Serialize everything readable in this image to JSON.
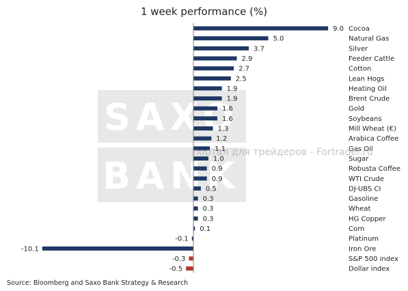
{
  "chart_data": {
    "type": "bar",
    "orientation": "horizontal",
    "title": "1 week performance (%)",
    "source": "Source: Bloomberg and Saxo Bank Strategy & Research",
    "categories": [
      "Cocoa",
      "Natural Gas",
      "Silver",
      "Feeder Cattle",
      "Cotton",
      "Lean Hogs",
      "Heating Oil",
      "Brent Crude",
      "Gold",
      "Soybeans",
      "Mill Wheat (€)",
      "Arabica Coffee",
      "Gas Oil",
      "Sugar",
      "Robusta Coffee",
      "WTI Crude",
      "DJ-UBS CI",
      "Gasoline",
      "Wheat",
      "HG Copper",
      "Corn",
      "Platinum",
      "Iron Ore",
      "S&P 500 index",
      "Dollar index"
    ],
    "values": [
      9.0,
      5.0,
      3.7,
      2.9,
      2.7,
      2.5,
      1.9,
      1.9,
      1.6,
      1.6,
      1.3,
      1.2,
      1.1,
      1.0,
      0.9,
      0.9,
      0.5,
      0.3,
      0.3,
      0.3,
      0.1,
      -0.1,
      -10.1,
      -0.3,
      -0.5
    ],
    "value_labels": [
      "9.0",
      "5.0",
      "3.7",
      "2.9",
      "2.7",
      "2.5",
      "1.9",
      "1.9",
      "1.6",
      "1.6",
      "1.3",
      "1.2",
      "1.1",
      "1.0",
      "0.9",
      "0.9",
      "0.5",
      "0.3",
      "0.3",
      "0.3",
      "0.1",
      "-0.1",
      "-10.1",
      "-0.3",
      "-0.5"
    ],
    "highlight_categories": [
      "S&P 500 index",
      "Dollar index"
    ],
    "xlim": [
      -10.1,
      9.0
    ],
    "grid": false,
    "legend": "none"
  },
  "colors": {
    "bar": "#1f3864",
    "highlight_bar": "#b03a2e",
    "axis": "#7f7f7f",
    "text": "#222222"
  },
  "watermark": {
    "logo_line1": "SAXO",
    "logo_line2": "BANK",
    "site_text": "портал для трейдеров - Fortrader.ru"
  }
}
